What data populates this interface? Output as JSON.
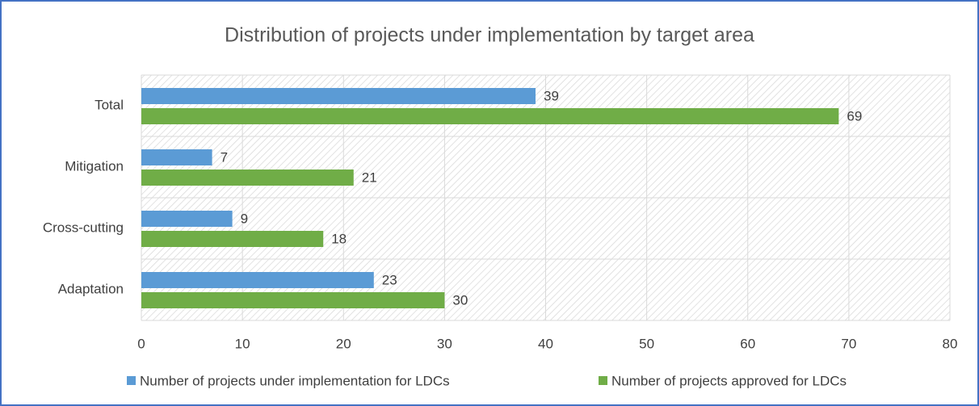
{
  "chart_data": {
    "type": "bar",
    "orientation": "horizontal",
    "title": "Distribution of projects under implementation by target area",
    "categories": [
      "Total",
      "Mitigation",
      "Cross-cutting",
      "Adaptation"
    ],
    "series": [
      {
        "name": "Number of projects under implementation for LDCs",
        "color": "#5b9bd5",
        "values": [
          39,
          7,
          9,
          23
        ]
      },
      {
        "name": "Number of projects approved for LDCs",
        "color": "#70ad47",
        "values": [
          69,
          21,
          18,
          30
        ]
      }
    ],
    "xlim": [
      0,
      80
    ],
    "xticks": [
      0,
      10,
      20,
      30,
      40,
      50,
      60,
      70,
      80
    ],
    "grid": true,
    "legend": "bottom"
  }
}
